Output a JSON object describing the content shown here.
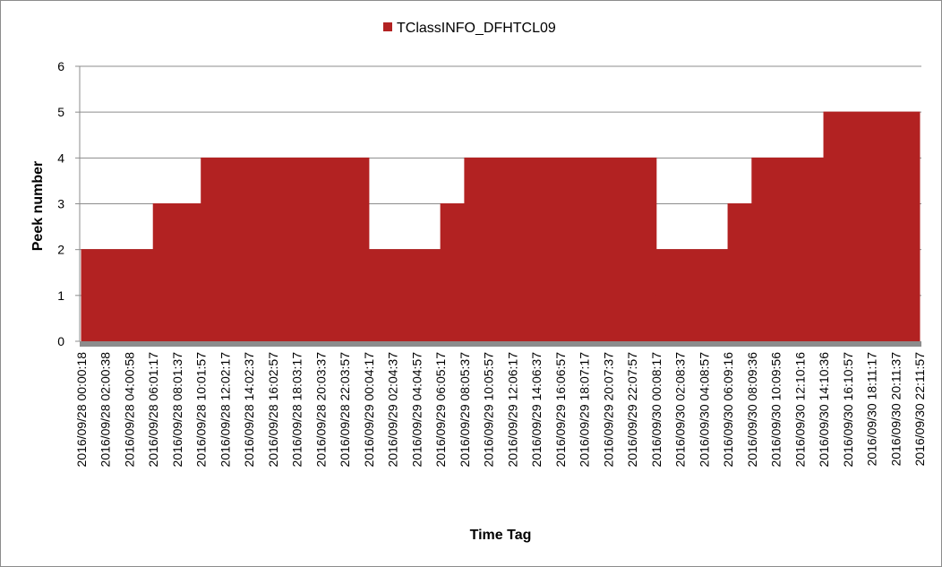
{
  "chart_data": {
    "type": "area",
    "title": "",
    "xlabel": "Time Tag",
    "ylabel": "Peek number",
    "ylim": [
      0,
      6
    ],
    "yticks": [
      0,
      1,
      2,
      3,
      4,
      5,
      6
    ],
    "grid": "horizontal",
    "legend_position": "top",
    "categories": [
      "2016/09/28 00:00:18",
      "2016/09/28 02:00:38",
      "2016/09/28 04:00:58",
      "2016/09/28 06:01:17",
      "2016/09/28 08:01:37",
      "2016/09/28 10:01:57",
      "2016/09/28 12:02:17",
      "2016/09/28 14:02:37",
      "2016/09/28 16:02:57",
      "2016/09/28 18:03:17",
      "2016/09/28 20:03:37",
      "2016/09/28 22:03:57",
      "2016/09/29 00:04:17",
      "2016/09/29 02:04:37",
      "2016/09/29 04:04:57",
      "2016/09/29 06:05:17",
      "2016/09/29 08:05:37",
      "2016/09/29 10:05:57",
      "2016/09/29 12:06:17",
      "2016/09/29 14:06:37",
      "2016/09/29 16:06:57",
      "2016/09/29 18:07:17",
      "2016/09/29 20:07:37",
      "2016/09/29 22:07:57",
      "2016/09/30 00:08:17",
      "2016/09/30 02:08:37",
      "2016/09/30 04:08:57",
      "2016/09/30 06:09:16",
      "2016/09/30 08:09:36",
      "2016/09/30 10:09:56",
      "2016/09/30 12:10:16",
      "2016/09/30 14:10:36",
      "2016/09/30 16:10:57",
      "2016/09/30 18:11:17",
      "2016/09/30 20:11:37",
      "2016/09/30 22:11:57"
    ],
    "series": [
      {
        "name": "TClassINFO_DFHTCL09",
        "color": "#b22222",
        "step_points": [
          [
            "2016/09/28 00:00:18",
            2
          ],
          [
            "2016/09/28 06:01:17",
            2
          ],
          [
            "2016/09/28 06:01:17",
            3
          ],
          [
            "2016/09/28 10:01:57",
            3
          ],
          [
            "2016/09/28 10:01:57",
            4
          ],
          [
            "2016/09/29 00:04:17",
            4
          ],
          [
            "2016/09/29 00:04:17",
            0
          ],
          [
            "2016/09/29 00:04:17",
            2
          ],
          [
            "2016/09/29 06:05:17",
            2
          ],
          [
            "2016/09/29 06:05:17",
            3
          ],
          [
            "2016/09/29 08:05:37",
            3
          ],
          [
            "2016/09/29 08:05:37",
            4
          ],
          [
            "2016/09/30 00:08:17",
            4
          ],
          [
            "2016/09/30 00:08:17",
            1
          ],
          [
            "2016/09/30 00:08:17",
            2
          ],
          [
            "2016/09/30 06:09:16",
            2
          ],
          [
            "2016/09/30 06:09:16",
            3
          ],
          [
            "2016/09/30 08:09:36",
            3
          ],
          [
            "2016/09/30 08:09:36",
            4
          ],
          [
            "2016/09/30 14:10:36",
            4
          ],
          [
            "2016/09/30 14:10:36",
            5
          ],
          [
            "2016/09/30 22:11:57",
            5
          ]
        ]
      }
    ]
  }
}
